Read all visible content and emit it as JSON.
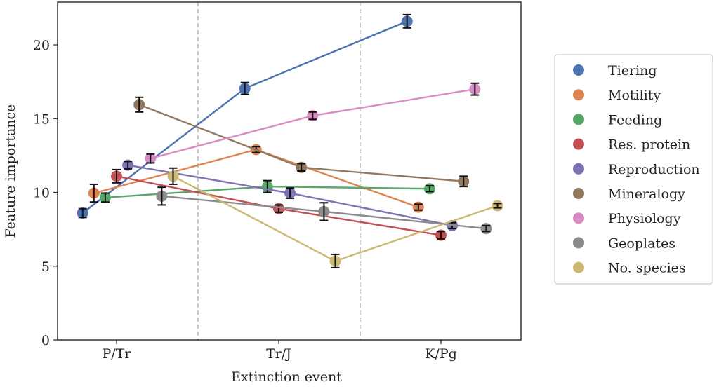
{
  "chart_data": {
    "type": "line",
    "title": "",
    "xlabel": "Extinction event",
    "ylabel": "Feature importance",
    "categories": [
      "P/Tr",
      "Tr/J",
      "K/Pg"
    ],
    "ylim": [
      0,
      22.9
    ],
    "yticks": [
      0,
      5,
      10,
      15,
      20
    ],
    "grid": false,
    "legend_placement": "right",
    "event_separators": "dashed",
    "series": [
      {
        "name": "Tiering",
        "color": "#4c72b0",
        "values": [
          8.6,
          17.05,
          21.6
        ],
        "err": [
          0.3,
          0.4,
          0.45
        ]
      },
      {
        "name": "Motility",
        "color": "#dd8452",
        "values": [
          9.95,
          12.9,
          9.0
        ],
        "err": [
          0.6,
          0.2,
          0.2
        ]
      },
      {
        "name": "Feeding",
        "color": "#55a868",
        "values": [
          9.65,
          10.4,
          10.25
        ],
        "err": [
          0.3,
          0.4,
          0.2
        ]
      },
      {
        "name": "Res. protein",
        "color": "#c44e52",
        "values": [
          11.1,
          8.9,
          7.1
        ],
        "err": [
          0.45,
          0.25,
          0.25
        ]
      },
      {
        "name": "Reproduction",
        "color": "#8172b3",
        "values": [
          11.85,
          9.95,
          7.75
        ],
        "err": [
          0.25,
          0.35,
          0.2
        ]
      },
      {
        "name": "Mineralogy",
        "color": "#937860",
        "values": [
          15.95,
          11.7,
          10.75
        ],
        "err": [
          0.5,
          0.25,
          0.35
        ]
      },
      {
        "name": "Physiology",
        "color": "#da8bc3",
        "values": [
          12.3,
          15.2,
          17.0
        ],
        "err": [
          0.3,
          0.25,
          0.4
        ]
      },
      {
        "name": "Geoplates",
        "color": "#8c8c8c",
        "values": [
          9.75,
          8.7,
          7.55
        ],
        "err": [
          0.6,
          0.6,
          0.2
        ]
      },
      {
        "name": "No. species",
        "color": "#ccb974",
        "values": [
          11.1,
          5.35,
          9.1
        ],
        "err": [
          0.55,
          0.45,
          0.15
        ]
      }
    ]
  }
}
